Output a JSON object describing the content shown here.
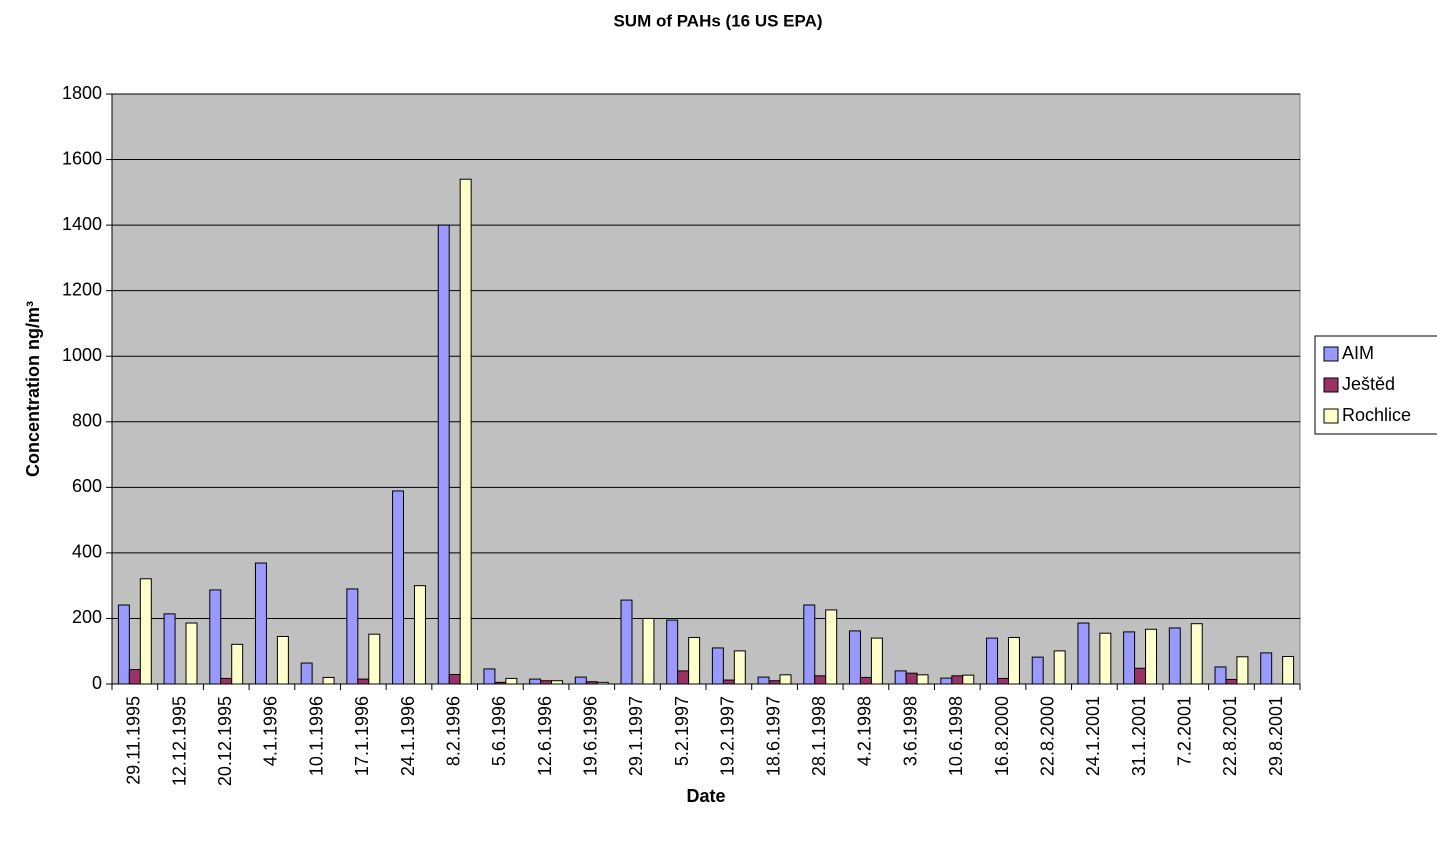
{
  "chart_data": {
    "type": "bar",
    "title": "SUM of PAHs (16 US EPA)",
    "x_label": "Date",
    "y_label": "Concentration ng/m³",
    "categories": [
      "29.11.1995",
      "12.12.1995",
      "20.12.1995",
      "4.1.1996",
      "10.1.1996",
      "17.1.1996",
      "24.1.1996",
      "8.2.1996",
      "5.6.1996",
      "12.6.1996",
      "19.6.1996",
      "29.1.1997",
      "5.2.1997",
      "19.2.1997",
      "18.6.1997",
      "28.1.1998",
      "4.2.1998",
      "3.6.1998",
      "10.6.1998",
      "16.8.2000",
      "22.8.2000",
      "24.1.2001",
      "31.1.2001",
      "7.2.2001",
      "22.8.2001",
      "29.8.2001"
    ],
    "series": [
      {
        "name": "AIM",
        "color": "#9999ff",
        "values": [
          241,
          214,
          287,
          369,
          64,
          290,
          589,
          1400,
          46,
          15,
          21,
          256,
          195,
          110,
          21,
          241,
          162,
          40,
          18,
          140,
          82,
          186,
          159,
          171,
          52,
          95
        ]
      },
      {
        "name": "Ještěd",
        "color": "#993366",
        "values": [
          44,
          null,
          17,
          null,
          null,
          15,
          null,
          29,
          5,
          10,
          7,
          null,
          40,
          12,
          10,
          25,
          20,
          33,
          25,
          17,
          null,
          null,
          48,
          null,
          14,
          null
        ]
      },
      {
        "name": "Rochlice",
        "color": "#ffffcc",
        "values": [
          321,
          186,
          121,
          145,
          20,
          152,
          300,
          1540,
          17,
          10,
          5,
          200,
          142,
          101,
          28,
          226,
          140,
          28,
          27,
          142,
          101,
          155,
          167,
          184,
          83,
          84
        ]
      }
    ],
    "ylim": [
      0,
      1800
    ],
    "yticks": [
      0,
      200,
      400,
      600,
      800,
      1000,
      1200,
      1400,
      1600,
      1800
    ],
    "grid": true,
    "legend": "right"
  }
}
